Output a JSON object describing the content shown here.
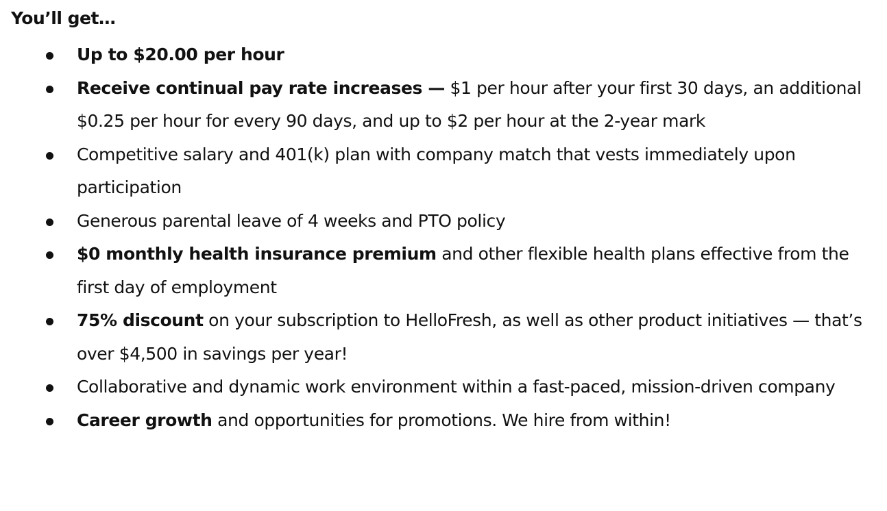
{
  "heading": "You’ll get…",
  "items": [
    {
      "bold": "Up to $20.00 per hour",
      "text": ""
    },
    {
      "bold": "Receive continual pay rate increases —",
      "text": " $1 per hour after your first 30 days, an additional $0.25 per hour for every 90 days, and up to $2 per hour at the 2-year mark"
    },
    {
      "bold": "",
      "text": "Competitive salary and 401(k) plan with company match that vests immediately upon participation"
    },
    {
      "bold": "",
      "text": "Generous parental leave of 4 weeks and PTO policy"
    },
    {
      "bold": "$0 monthly health insurance premium",
      "text": " and other flexible health plans effective from the first day of employment"
    },
    {
      "bold": "75% discount",
      "text": " on your subscription to HelloFresh, as well as other product initiatives — that’s over $4,500 in savings per year!"
    },
    {
      "bold": "",
      "text": "Collaborative and dynamic work environment within a fast-paced, mission-driven company"
    },
    {
      "bold": "Career growth",
      "text": " and opportunities for promotions. We hire from within!"
    }
  ]
}
